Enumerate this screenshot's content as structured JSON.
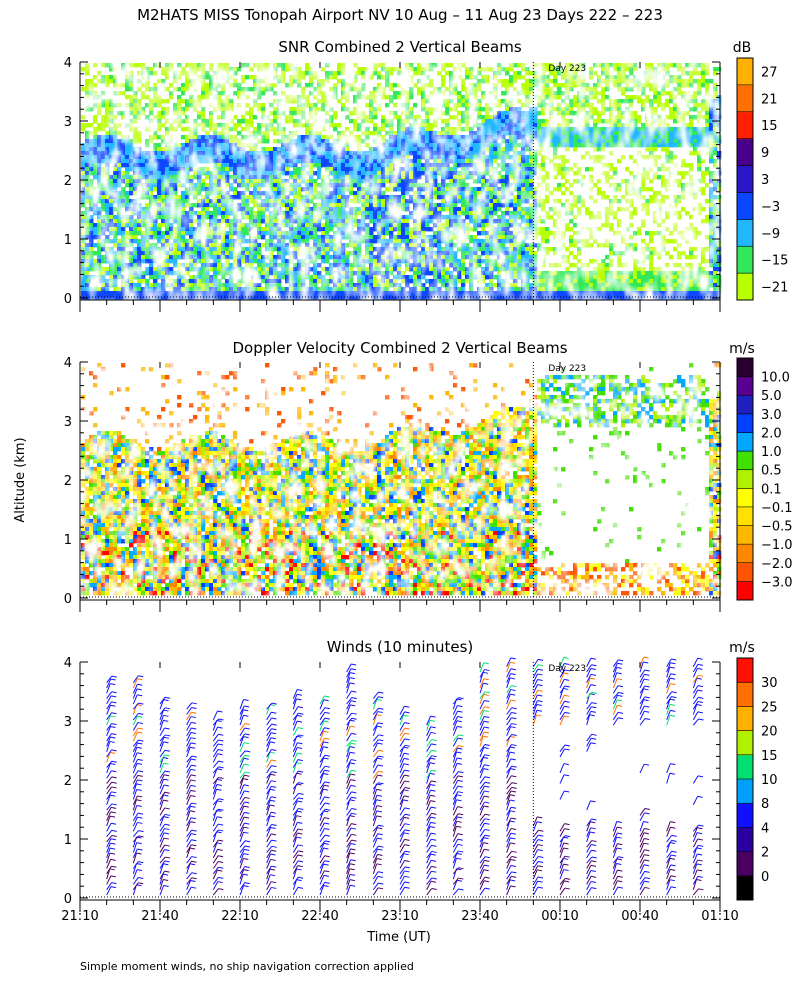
{
  "figure": {
    "title": "M2HATS MISS Tonopah Airport NV  10 Aug – 11 Aug 23 Days 222 – 223",
    "ylabel_shared": "Altitude (km)",
    "xlabel": "Time (UT)",
    "footnote": "Simple moment winds, no ship navigation correction applied",
    "day_marker": "Day 223",
    "x_ticks": [
      "21:10",
      "21:40",
      "22:10",
      "22:40",
      "23:10",
      "23:40",
      "00:10",
      "00:40",
      "01:10"
    ],
    "y_ticks": [
      "0",
      "1",
      "2",
      "3",
      "4"
    ]
  },
  "chart_data": [
    {
      "type": "heatmap",
      "title": "SNR Combined 2 Vertical Beams",
      "xlabel": "Time (UT)",
      "ylabel": "Altitude (km)",
      "xlim": [
        "21:10",
        "01:10"
      ],
      "ylim": [
        0,
        4
      ],
      "colorbar_unit": "dB",
      "colorbar_ticks": [
        "27",
        "21",
        "15",
        "9",
        "3",
        "−3",
        "−9",
        "−15",
        "−21"
      ],
      "colorbar_colors": [
        "#b8ff00",
        "#33e85a",
        "#22b8ff",
        "#0a46ff",
        "#2a18c8",
        "#48008a",
        "#ff2000",
        "#ff7000",
        "#ffb000"
      ],
      "day_marker_time": "00:00",
      "summary": "Enhanced SNR (-9 to 3 dB) in a boundary layer up to ~2.5 km before 00:00 UT, rising to ~3.5 km near 23:50; weaker echoes (-21 to -15 dB) aloft and after 00:00."
    },
    {
      "type": "heatmap",
      "title": "Doppler Velocity Combined 2 Vertical Beams",
      "xlabel": "Time (UT)",
      "ylabel": "Altitude (km)",
      "xlim": [
        "21:10",
        "01:10"
      ],
      "ylim": [
        0,
        4
      ],
      "colorbar_unit": "m/s",
      "colorbar_ticks": [
        "10.0",
        "5.0",
        "3.0",
        "2.0",
        "1.0",
        "0.5",
        "0.1",
        "−0.1",
        "−0.5",
        "−1.0",
        "−2.0",
        "−3.0"
      ],
      "colorbar_colors": [
        "#ff0000",
        "#ff5500",
        "#ff8800",
        "#ffb800",
        "#ffe000",
        "#ffff00",
        "#b0f000",
        "#40e000",
        "#00a8ff",
        "#0040ff",
        "#2020c0",
        "#5a0090",
        "#2a0030"
      ],
      "day_marker_time": "00:00",
      "summary": "Mixed upward (blue/green, 0.5-2 m/s) and downward (orange/red, -1 to -3 m/s) motions within the convective boundary layer below ~2.5 km before 00:00 UT."
    },
    {
      "type": "scatter",
      "title": "Winds (10 minutes)",
      "xlabel": "Time (UT)",
      "ylabel": "Altitude (km)",
      "xlim": [
        "21:10",
        "01:10"
      ],
      "ylim": [
        0,
        4
      ],
      "marker": "wind barb",
      "colorbar_unit": "m/s",
      "colorbar_ticks": [
        "30",
        "25",
        "20",
        "15",
        "10",
        "8",
        "4",
        "2",
        "0"
      ],
      "colorbar_colors": [
        "#000000",
        "#4a0060",
        "#2a00a0",
        "#1010ff",
        "#00a0ff",
        "#00e070",
        "#b0f000",
        "#ffb000",
        "#ff7000",
        "#ff1000"
      ],
      "day_marker_time": "00:00",
      "summary": "Wind barbs every 10 minutes, mostly 4-8 m/s below 3 km, with stronger 15-30 m/s winds in isolated layers aloft."
    }
  ]
}
